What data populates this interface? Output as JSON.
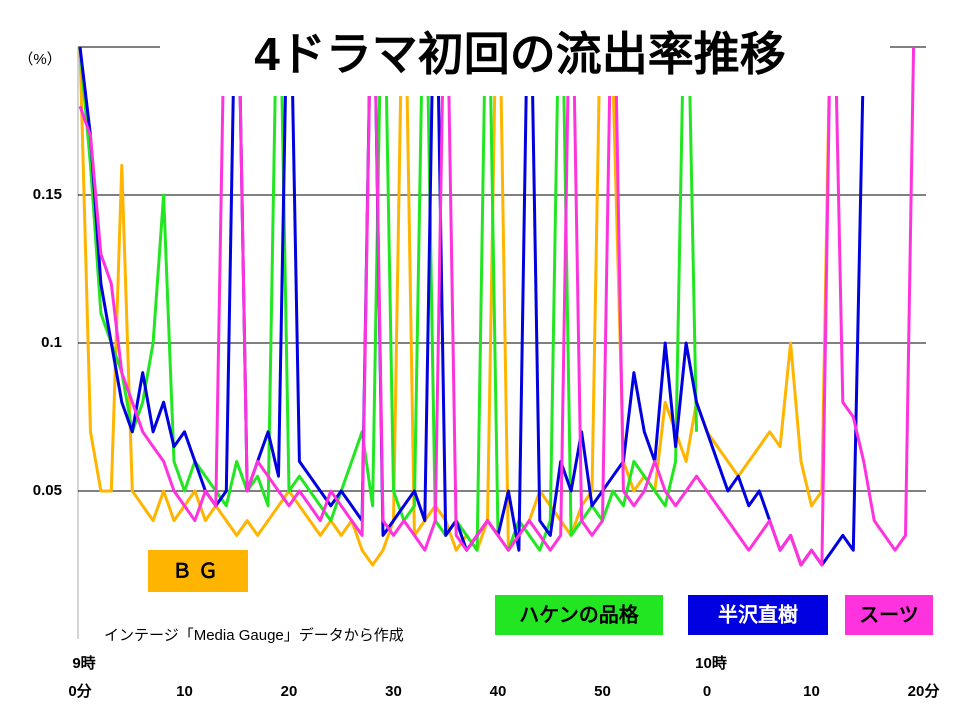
{
  "chart_data": {
    "type": "line",
    "title": "4ドラマ初回の流出率推移",
    "y_label": "（%）",
    "x_unit": "分",
    "source": "インテージ「Media Gauge」データから作成",
    "hour_labels": [
      {
        "x": 0,
        "label": "9時"
      },
      {
        "x": 60,
        "label": "10時"
      }
    ],
    "xlim": [
      0,
      81
    ],
    "ylim": [
      0,
      0.2
    ],
    "yticks": [
      0.05,
      0.1,
      0.15
    ],
    "xticks": [
      {
        "value": 0,
        "label": "0分"
      },
      10,
      20,
      30,
      40,
      50,
      {
        "value": 60,
        "label": "0"
      },
      {
        "value": 70,
        "label": "10"
      },
      {
        "value": 80,
        "label": "20"
      }
    ],
    "grid": true,
    "x": [
      0,
      1,
      2,
      3,
      4,
      5,
      6,
      7,
      8,
      9,
      10,
      11,
      12,
      13,
      14,
      15,
      16,
      17,
      18,
      19,
      20,
      21,
      22,
      23,
      24,
      25,
      26,
      27,
      28,
      29,
      30,
      31,
      32,
      33,
      34,
      35,
      36,
      37,
      38,
      39,
      40,
      41,
      42,
      43,
      44,
      45,
      46,
      47,
      48,
      49,
      50,
      51,
      52,
      53,
      54,
      55,
      56,
      57,
      58,
      59,
      60,
      61,
      62,
      63,
      64,
      65,
      66,
      67,
      68,
      69,
      70,
      71,
      72,
      73,
      74,
      75,
      76,
      77,
      78,
      79,
      80
    ],
    "series": [
      {
        "name": "ＢＧ",
        "color": "#ffb400",
        "values": [
          0.2,
          0.07,
          0.05,
          0.05,
          0.16,
          0.05,
          0.045,
          0.04,
          0.05,
          0.04,
          0.045,
          0.05,
          0.04,
          0.045,
          0.04,
          0.035,
          0.04,
          0.035,
          0.04,
          0.045,
          0.05,
          0.045,
          0.04,
          0.035,
          0.04,
          0.035,
          0.04,
          0.03,
          0.025,
          0.03,
          0.04,
          0.25,
          0.035,
          0.04,
          0.045,
          0.04,
          0.03,
          0.035,
          0.03,
          0.04,
          0.25,
          0.03,
          0.035,
          0.04,
          0.05,
          0.045,
          0.04,
          0.035,
          0.045,
          0.05,
          0.25,
          0.19,
          0.06,
          0.05,
          0.055,
          0.05,
          0.08,
          0.07,
          0.06,
          0.08,
          0.07,
          0.065,
          0.06,
          0.055,
          0.06,
          0.065,
          0.07,
          0.065,
          0.1,
          0.06,
          0.045,
          0.05,
          0.25,
          null,
          null,
          null,
          null,
          null,
          null,
          null,
          null
        ]
      },
      {
        "name": "ハケンの品格",
        "color": "#22e622",
        "values": [
          0.2,
          0.16,
          0.11,
          0.1,
          0.09,
          0.07,
          0.08,
          0.1,
          0.15,
          0.06,
          0.05,
          0.06,
          0.055,
          0.05,
          0.045,
          0.06,
          0.05,
          0.055,
          0.045,
          0.25,
          0.05,
          0.055,
          0.05,
          0.045,
          0.04,
          0.05,
          0.06,
          0.07,
          0.045,
          0.25,
          0.05,
          0.04,
          0.045,
          0.25,
          0.04,
          0.035,
          0.04,
          0.035,
          0.03,
          0.25,
          0.035,
          0.03,
          0.04,
          0.035,
          0.03,
          0.04,
          0.25,
          0.035,
          0.04,
          0.045,
          0.04,
          0.05,
          0.045,
          0.06,
          0.055,
          0.05,
          0.045,
          0.06,
          0.25,
          0.07,
          null,
          null,
          null,
          null,
          null,
          null,
          null,
          null,
          null,
          null,
          null,
          null,
          null,
          null,
          null,
          null,
          null,
          null,
          null,
          null,
          null
        ]
      },
      {
        "name": "半沢直樹",
        "color": "#0000e0",
        "values": [
          0.2,
          0.17,
          0.12,
          0.1,
          0.08,
          0.07,
          0.09,
          0.07,
          0.08,
          0.065,
          0.07,
          0.06,
          0.05,
          0.045,
          0.05,
          0.25,
          0.05,
          0.06,
          0.07,
          0.055,
          0.25,
          0.06,
          0.055,
          0.05,
          0.045,
          0.05,
          0.045,
          0.04,
          0.25,
          0.035,
          0.04,
          0.045,
          0.05,
          0.04,
          0.25,
          0.035,
          0.04,
          0.03,
          0.035,
          0.04,
          0.035,
          0.05,
          0.03,
          0.25,
          0.04,
          0.035,
          0.06,
          0.05,
          0.07,
          0.045,
          0.05,
          0.055,
          0.06,
          0.09,
          0.07,
          0.06,
          0.1,
          0.065,
          0.1,
          0.08,
          0.07,
          0.06,
          0.05,
          0.055,
          0.045,
          0.05,
          0.04,
          0.03,
          0.035,
          0.025,
          0.03,
          0.025,
          0.03,
          0.035,
          0.03,
          0.2,
          null,
          null,
          null,
          null,
          null
        ]
      },
      {
        "name": "スーツ",
        "color": "#ff33dd",
        "values": [
          0.18,
          0.17,
          0.13,
          0.12,
          0.09,
          0.08,
          0.07,
          0.065,
          0.06,
          0.05,
          0.045,
          0.04,
          0.05,
          0.045,
          0.25,
          0.25,
          0.05,
          0.06,
          0.055,
          0.05,
          0.045,
          0.05,
          0.045,
          0.04,
          0.05,
          0.045,
          0.04,
          0.035,
          0.25,
          0.04,
          0.035,
          0.04,
          0.035,
          0.03,
          0.04,
          0.25,
          0.035,
          0.03,
          0.035,
          0.04,
          0.035,
          0.03,
          0.035,
          0.04,
          0.035,
          0.03,
          0.035,
          0.25,
          0.04,
          0.035,
          0.04,
          0.25,
          0.05,
          0.045,
          0.05,
          0.06,
          0.05,
          0.045,
          0.05,
          0.055,
          0.05,
          0.045,
          0.04,
          0.035,
          0.03,
          0.035,
          0.04,
          0.03,
          0.035,
          0.025,
          0.03,
          0.025,
          0.25,
          0.08,
          0.075,
          0.06,
          0.04,
          0.035,
          0.03,
          0.035,
          0.25
        ]
      }
    ]
  }
}
